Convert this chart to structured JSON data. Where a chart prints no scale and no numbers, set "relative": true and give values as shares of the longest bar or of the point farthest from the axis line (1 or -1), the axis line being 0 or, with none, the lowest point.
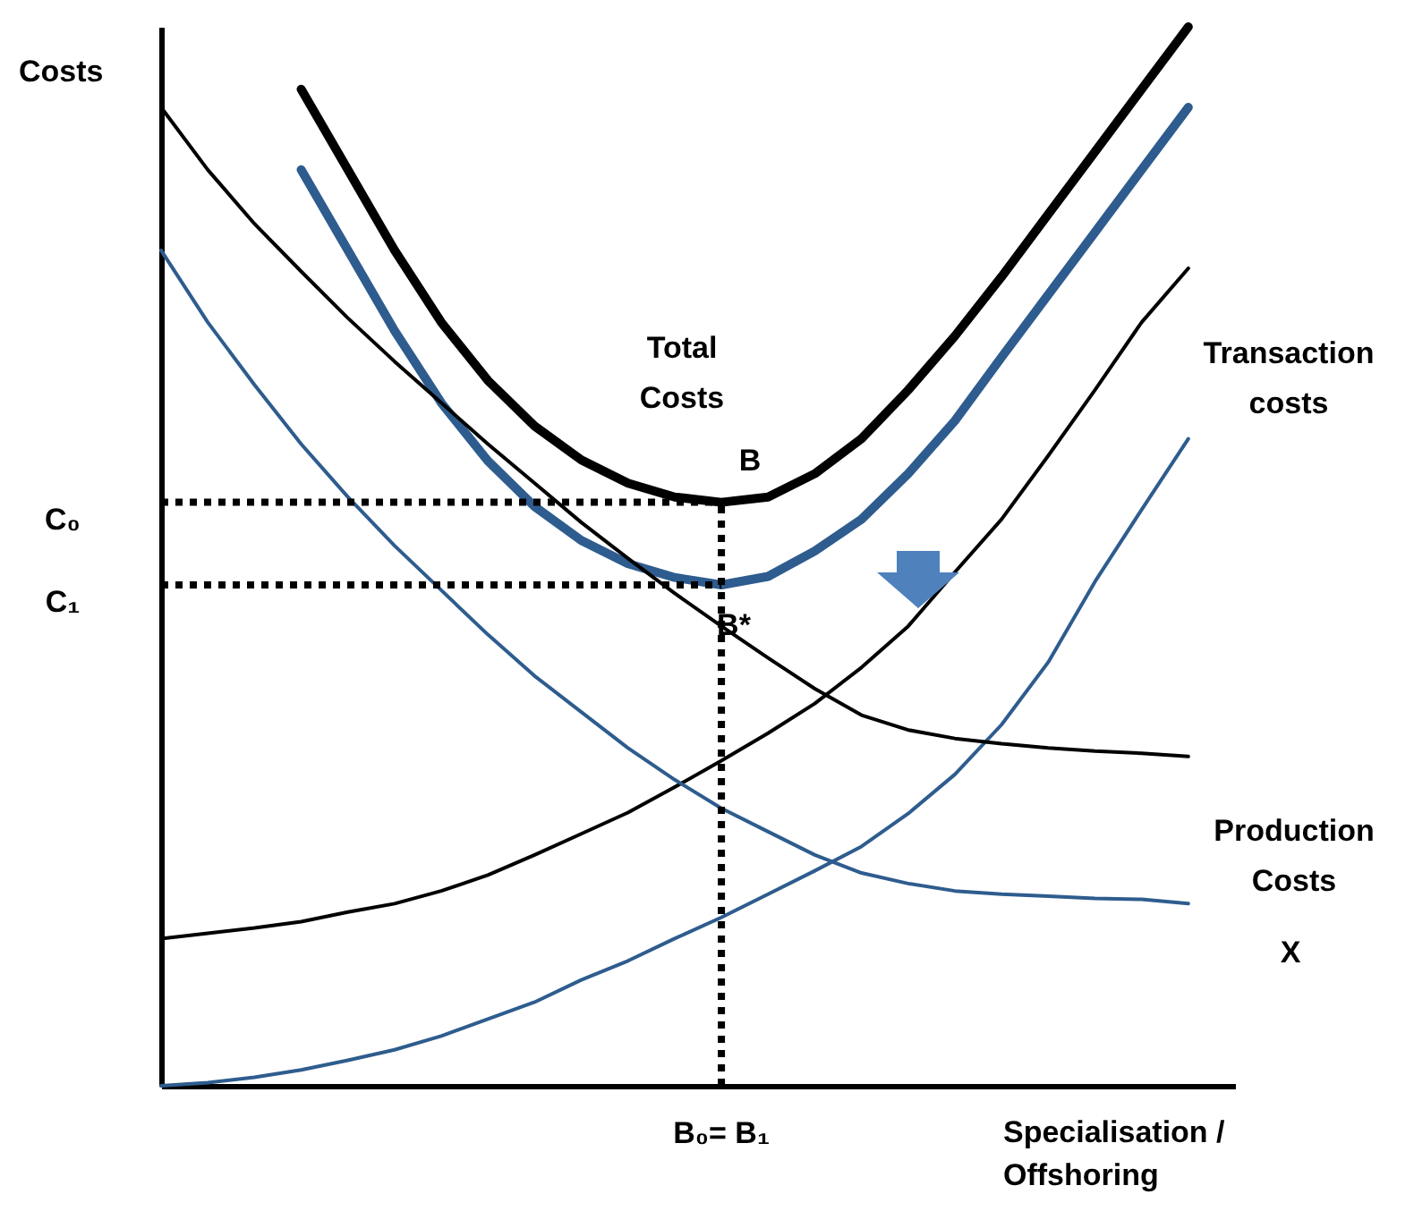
{
  "chart_data": {
    "type": "line",
    "relative": true,
    "ylabel": "Costs",
    "xlabel": "Specialisation / Offshoring",
    "categories": [
      null,
      null,
      null,
      null,
      null,
      null,
      null,
      null,
      null,
      null,
      null,
      null,
      null,
      null,
      null,
      null,
      null,
      null,
      null,
      null,
      null,
      null,
      null,
      null
    ],
    "series": [
      {
        "color": "#000000",
        "values": [
          null,
          null,
          null,
          0.941,
          0.865,
          0.789,
          0.721,
          0.666,
          0.623,
          0.591,
          0.569,
          0.556,
          0.551,
          0.556,
          0.578,
          0.611,
          0.657,
          0.708,
          0.764,
          0.823,
          0.882,
          0.941,
          1,
          null
        ]
      },
      {
        "color": "#2e5c8e",
        "values": [
          null,
          null,
          null,
          0.865,
          0.789,
          0.713,
          0.645,
          0.59,
          0.547,
          0.515,
          0.493,
          0.48,
          0.473,
          0.481,
          0.505,
          0.535,
          0.578,
          0.628,
          0.688,
          0.747,
          0.806,
          0.865,
          0.924,
          null
        ]
      },
      {
        "color": "#000000",
        "values": [
          0.139,
          0.144,
          0.149,
          0.155,
          0.164,
          0.172,
          0.184,
          0.199,
          0.218,
          0.238,
          0.258,
          0.282,
          0.307,
          0.333,
          0.361,
          0.395,
          0.434,
          0.485,
          0.535,
          0.595,
          0.657,
          0.721,
          0.772,
          null
        ]
      },
      {
        "color": "#2e5c8e",
        "values": [
          0,
          0.003,
          0.008,
          0.015,
          0.024,
          0.034,
          0.047,
          0.063,
          0.079,
          0.1,
          0.118,
          0.139,
          0.159,
          0.181,
          0.203,
          0.226,
          0.257,
          0.294,
          0.341,
          0.4,
          0.476,
          0.544,
          0.611,
          null
        ]
      },
      {
        "color": "#000000",
        "values": [
          0.924,
          0.865,
          0.814,
          0.769,
          0.725,
          0.684,
          0.645,
          0.606,
          0.569,
          0.532,
          0.498,
          0.465,
          0.434,
          0.404,
          0.375,
          0.35,
          0.336,
          0.328,
          0.323,
          0.319,
          0.316,
          0.314,
          0.311,
          null
        ]
      },
      {
        "color": "#2e5c8e",
        "values": [
          0.789,
          0.721,
          0.662,
          0.606,
          0.556,
          0.51,
          0.468,
          0.426,
          0.387,
          0.353,
          0.319,
          0.289,
          0.262,
          0.24,
          0.218,
          0.201,
          0.191,
          0.184,
          0.181,
          0.179,
          0.177,
          0.176,
          0.172,
          null
        ]
      }
    ],
    "ref_lines": [
      {
        "axis": "y",
        "value": 0.551,
        "label": "C₀",
        "color": "#000000",
        "line_style": "dotted"
      },
      {
        "axis": "y",
        "value": 0.473,
        "label": "C₁",
        "color": "#000000",
        "line_style": "dotted"
      }
    ],
    "annotations": [
      "Total Costs",
      "B",
      "B*",
      "Transaction costs",
      "Production Costs",
      "X",
      "B₀= B₁"
    ],
    "grid": false
  }
}
